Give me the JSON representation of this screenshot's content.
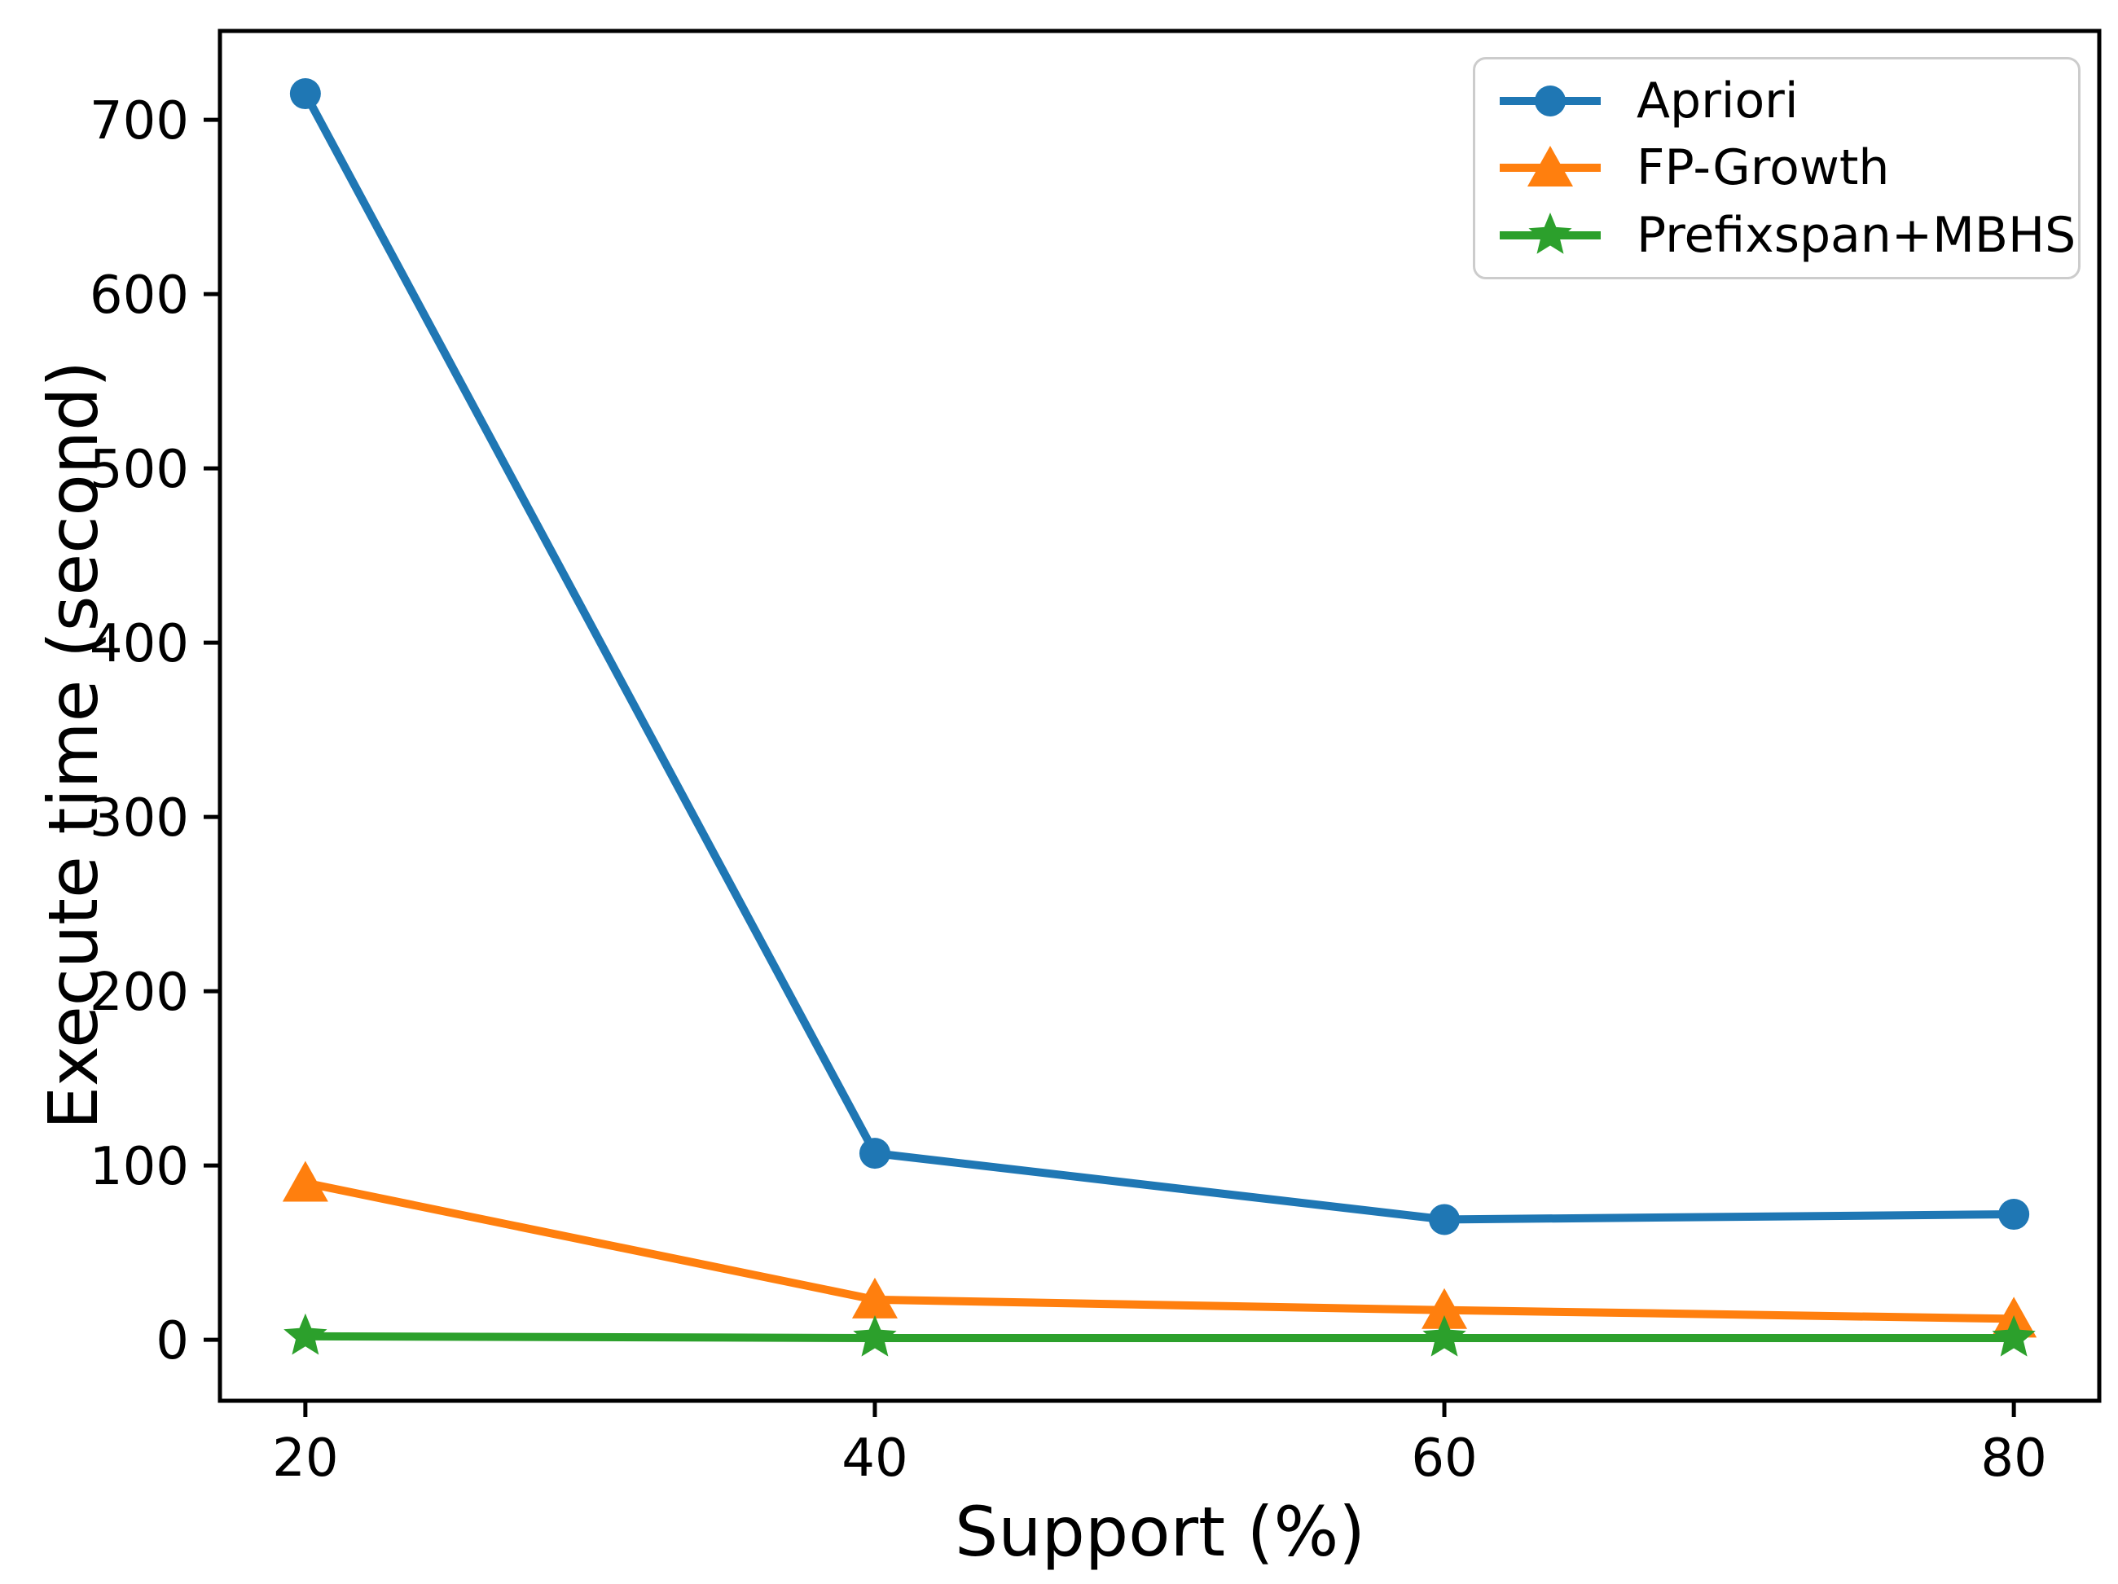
{
  "chart_data": {
    "type": "line",
    "title": "",
    "xlabel": "Support (%)",
    "ylabel": "Execute time (second)",
    "x": [
      20,
      40,
      60,
      80
    ],
    "xtick_labels": [
      "20",
      "40",
      "60",
      "80"
    ],
    "yticks": [
      0,
      100,
      200,
      300,
      400,
      500,
      600,
      700
    ],
    "ytick_labels": [
      "0",
      "100",
      "200",
      "300",
      "400",
      "500",
      "600",
      "700"
    ],
    "xlim": [
      17,
      83
    ],
    "ylim": [
      -35,
      751
    ],
    "grid": false,
    "legend_position": "upper right",
    "legend_border_color": "#cccccc",
    "axis_color": "#000000",
    "series": [
      {
        "name": "Apriori",
        "marker": "circle",
        "color": "#1f77b4",
        "values": [
          715,
          107,
          69,
          72
        ]
      },
      {
        "name": "FP-Growth",
        "marker": "triangle",
        "color": "#ff7f0e",
        "values": [
          90,
          23,
          17,
          12
        ]
      },
      {
        "name": "Prefixspan+MBHS",
        "marker": "star",
        "color": "#2ca02c",
        "values": [
          2,
          1,
          1,
          1
        ]
      }
    ]
  }
}
